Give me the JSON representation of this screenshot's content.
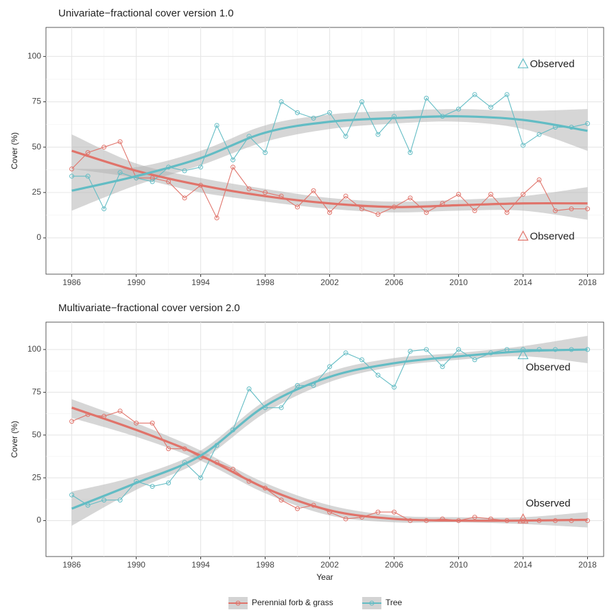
{
  "chart_data": [
    {
      "type": "line",
      "title": "Univariate−fractional cover version 1.0",
      "y_label": "Cover (%)",
      "x": [
        1986,
        1987,
        1988,
        1989,
        1990,
        1991,
        1992,
        1993,
        1994,
        1995,
        1996,
        1997,
        1998,
        1999,
        2000,
        2001,
        2002,
        2003,
        2004,
        2005,
        2006,
        2007,
        2008,
        2009,
        2010,
        2011,
        2012,
        2013,
        2014,
        2015,
        2016,
        2017,
        2018
      ],
      "fit_x": [
        1986,
        1990,
        1994,
        1998,
        2002,
        2006,
        2010,
        2014,
        2018
      ],
      "xlim": [
        1984.4,
        2019.0
      ],
      "xticks": [
        1986,
        1990,
        1994,
        1998,
        2002,
        2006,
        2010,
        2014,
        2018
      ],
      "ylim": [
        -20,
        116
      ],
      "yticks": [
        0,
        25,
        50,
        75,
        100
      ],
      "grid": true,
      "series": [
        {
          "name": "Perennial forb & grass",
          "color": "#e0736a",
          "values": [
            38,
            47,
            50,
            53,
            33,
            33,
            31,
            22,
            29,
            11,
            39,
            27,
            25,
            23,
            17,
            26,
            14,
            23,
            16,
            13,
            17,
            22,
            14,
            19,
            24,
            15,
            24,
            14,
            24,
            32,
            15,
            16,
            16
          ],
          "fit": [
            48,
            37,
            29,
            23,
            19,
            17,
            18,
            19,
            19
          ],
          "fit_lower": [
            38,
            33,
            25,
            20,
            16,
            14,
            15,
            15,
            10
          ],
          "fit_upper": [
            57,
            41,
            33,
            27,
            22,
            20,
            21,
            23,
            28
          ]
        },
        {
          "name": "Tree",
          "color": "#62bcc4",
          "values": [
            34,
            34,
            16,
            36,
            33,
            31,
            39,
            37,
            39,
            62,
            43,
            56,
            47,
            75,
            69,
            66,
            69,
            56,
            75,
            57,
            67,
            47,
            77,
            67,
            71,
            79,
            72,
            79,
            51,
            57,
            61,
            61,
            63
          ],
          "fit": [
            26,
            34,
            44,
            58,
            64,
            66,
            67,
            65,
            59
          ],
          "fit_lower": [
            15,
            29,
            40,
            53,
            60,
            63,
            64,
            60,
            48
          ],
          "fit_upper": [
            38,
            39,
            48,
            62,
            68,
            70,
            71,
            70,
            71
          ]
        }
      ],
      "annotations": [
        {
          "text": "Observed",
          "x": 2014,
          "y": 96,
          "color": "#62bcc4",
          "side": "right"
        },
        {
          "text": "Observed",
          "x": 2014,
          "y": 1,
          "color": "#e0736a",
          "side": "right"
        }
      ]
    },
    {
      "type": "line",
      "title": "Multivariate−fractional cover version 2.0",
      "y_label": "Cover (%)",
      "x_label": "Year",
      "x": [
        1986,
        1987,
        1988,
        1989,
        1990,
        1991,
        1992,
        1993,
        1994,
        1995,
        1996,
        1997,
        1998,
        1999,
        2000,
        2001,
        2002,
        2003,
        2004,
        2005,
        2006,
        2007,
        2008,
        2009,
        2010,
        2011,
        2012,
        2013,
        2014,
        2015,
        2016,
        2017,
        2018
      ],
      "fit_x": [
        1986,
        1990,
        1994,
        1998,
        2002,
        2006,
        2010,
        2014,
        2018
      ],
      "xlim": [
        1984.4,
        2019.0
      ],
      "xticks": [
        1986,
        1990,
        1994,
        1998,
        2002,
        2006,
        2010,
        2014,
        2018
      ],
      "ylim": [
        -21,
        116
      ],
      "yticks": [
        0,
        25,
        50,
        75,
        100
      ],
      "grid": true,
      "series": [
        {
          "name": "Perennial forb & grass",
          "color": "#e0736a",
          "values": [
            58,
            62,
            61,
            64,
            57,
            57,
            42,
            42,
            37,
            34,
            30,
            23,
            19,
            12,
            7,
            9,
            5,
            1,
            2,
            5,
            5,
            0,
            0,
            1,
            0,
            2,
            1,
            0,
            0,
            0,
            0,
            0,
            0
          ],
          "fit": [
            66,
            53,
            38,
            19,
            6,
            1,
            0,
            0,
            0.5
          ],
          "fit_lower": [
            60,
            49,
            35,
            16,
            3,
            -1,
            -1,
            -2,
            -4
          ],
          "fit_upper": [
            71,
            57,
            41,
            22,
            9,
            3,
            2,
            2,
            5
          ]
        },
        {
          "name": "Tree",
          "color": "#62bcc4",
          "values": [
            15,
            9,
            12,
            12,
            23,
            20,
            22,
            34,
            25,
            44,
            53,
            77,
            66,
            66,
            79,
            79,
            90,
            98,
            94,
            85,
            78,
            99,
            100,
            90,
            100,
            94,
            98,
            100,
            100,
            100,
            100,
            100,
            100
          ],
          "fit": [
            7,
            22,
            38,
            67,
            84,
            92,
            96,
            99,
            100
          ],
          "fit_lower": [
            -3,
            18,
            35,
            63,
            81,
            90,
            94,
            96,
            92
          ],
          "fit_upper": [
            17,
            26,
            41,
            70,
            87,
            95,
            98,
            102,
            108
          ]
        }
      ],
      "annotations": [
        {
          "text": "Observed",
          "x": 2014,
          "y": 97,
          "color": "#62bcc4",
          "side": "below"
        },
        {
          "text": "Observed",
          "x": 2014,
          "y": 1,
          "color": "#e0736a",
          "side": "above"
        }
      ]
    }
  ]
}
